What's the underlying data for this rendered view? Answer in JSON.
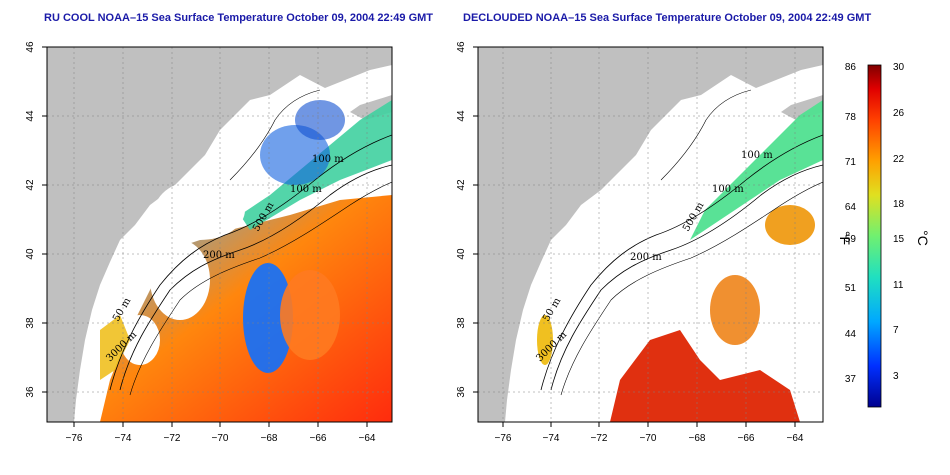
{
  "left_map": {
    "title": "RU COOL NOAA–15 Sea Surface Temperature October 09, 2004 22:49 GMT",
    "y_ticks": [
      "46",
      "44",
      "42",
      "40",
      "38",
      "36"
    ],
    "x_ticks": [
      "−76",
      "−74",
      "−72",
      "−70",
      "−68",
      "−66",
      "−64"
    ],
    "contour_labels": [
      "100 m",
      "100 m",
      "200 m",
      "500 m",
      "50 m",
      "3000 m"
    ]
  },
  "right_map": {
    "title": "DECLOUDED NOAA–15 Sea Surface Temperature October 09, 2004 22:49 GMT",
    "y_ticks": [
      "46",
      "44",
      "42",
      "40",
      "38",
      "36"
    ],
    "x_ticks": [
      "−76",
      "−74",
      "−72",
      "−70",
      "−68",
      "−66",
      "−64"
    ],
    "contour_labels": [
      "100 m",
      "100 m",
      "200 m",
      "500 m",
      "50 m",
      "3000 m"
    ]
  },
  "colorbar": {
    "fahrenheit_ticks": [
      "86",
      "78",
      "71",
      "64",
      "59",
      "51",
      "44",
      "37"
    ],
    "celsius_ticks": [
      "30",
      "26",
      "22",
      "18",
      "15",
      "11",
      "7",
      "3"
    ],
    "fahrenheit_unit": "°F",
    "celsius_unit": "°C"
  },
  "colors": {
    "land": "#c0c0c0",
    "cloud": "#ffffff",
    "title": "#1a1aa8"
  }
}
